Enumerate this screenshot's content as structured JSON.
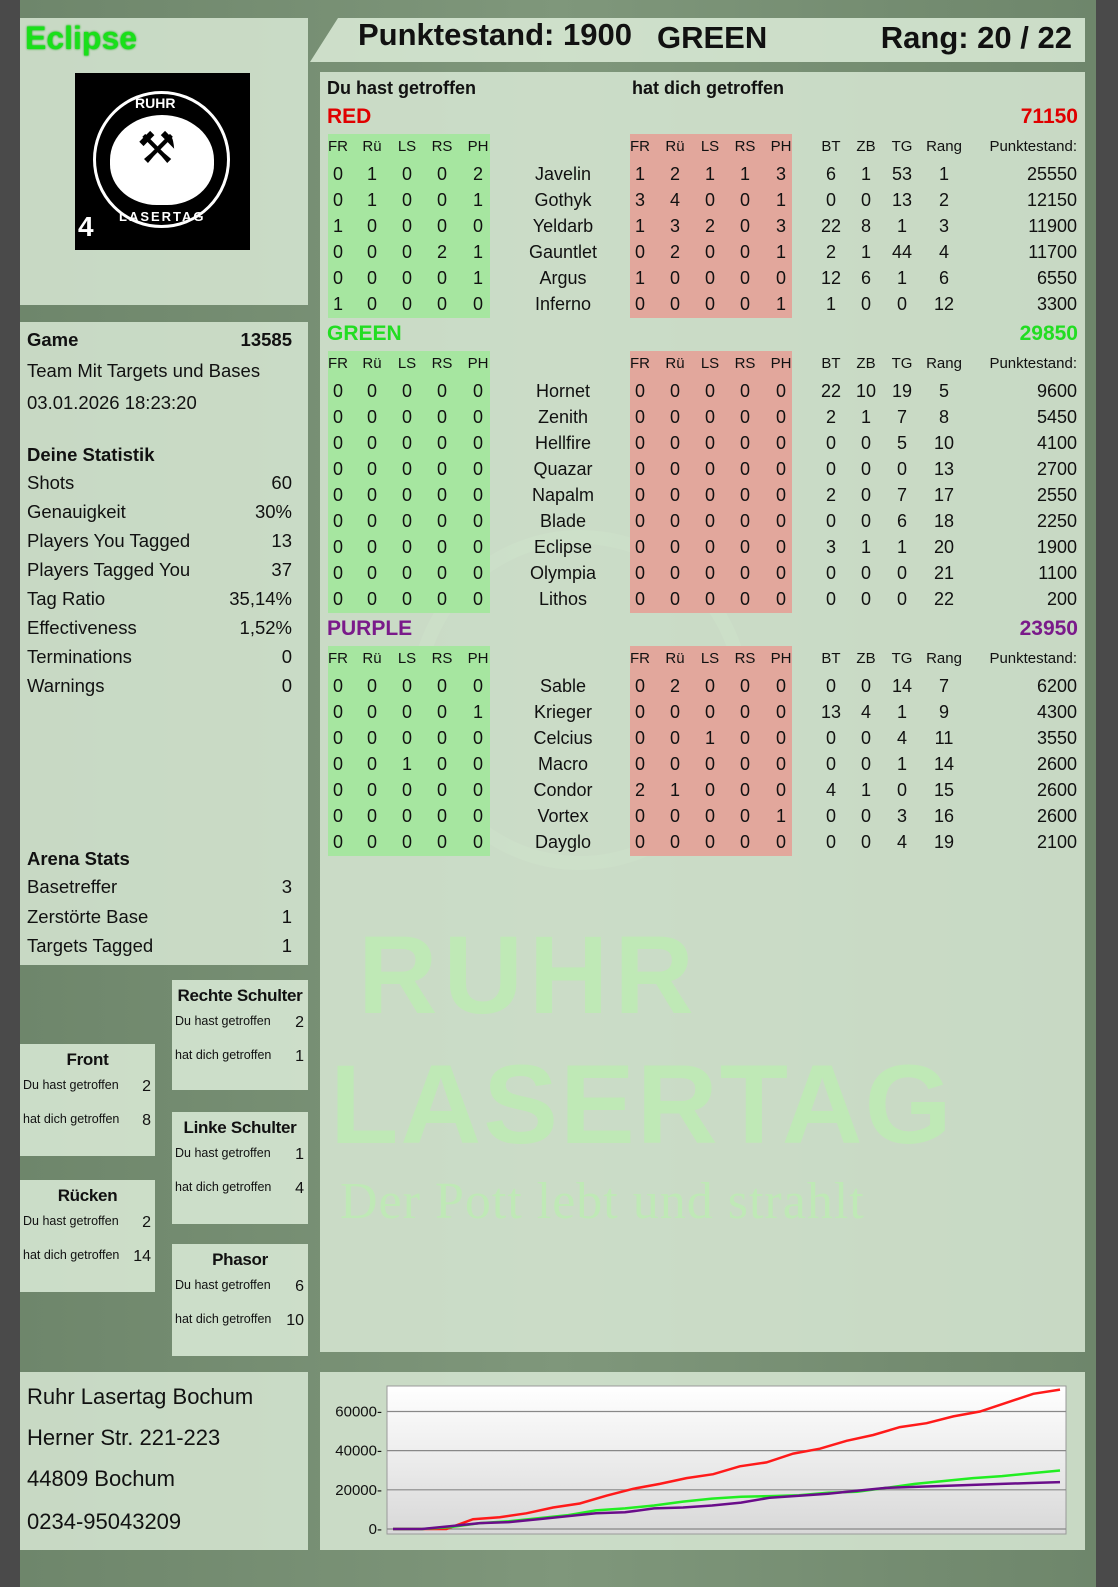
{
  "player": {
    "name": "Eclipse",
    "pack_number": "4"
  },
  "logo": {
    "text_top": "RUHR",
    "text_bottom": "LASERTAG"
  },
  "header": {
    "score": "Punktestand: 1900",
    "team": "GREEN",
    "rank": "Rang: 20 / 22"
  },
  "main": {
    "you_hit_label": "Du hast getroffen",
    "hit_you_label": "hat dich getroffen",
    "columns_you": [
      "FR",
      "Rü",
      "LS",
      "RS",
      "PH"
    ],
    "columns_them": [
      "FR",
      "Rü",
      "LS",
      "RS",
      "PH"
    ],
    "columns_stats": [
      "BT",
      "ZB",
      "TG",
      "Rang",
      "Punktestand:"
    ],
    "teams": [
      {
        "name": "RED",
        "score": "71150",
        "color": "#e00000",
        "players": [
          {
            "name": "Javelin",
            "you": [
              0,
              1,
              0,
              0,
              2
            ],
            "them": [
              1,
              2,
              1,
              1,
              3
            ],
            "bt": 6,
            "zb": 1,
            "tg": 53,
            "rang": 1,
            "score": 25550
          },
          {
            "name": "Gothyk",
            "you": [
              0,
              1,
              0,
              0,
              1
            ],
            "them": [
              3,
              4,
              0,
              0,
              1
            ],
            "bt": 0,
            "zb": 0,
            "tg": 13,
            "rang": 2,
            "score": 12150
          },
          {
            "name": "Yeldarb",
            "you": [
              1,
              0,
              0,
              0,
              0
            ],
            "them": [
              1,
              3,
              2,
              0,
              3
            ],
            "bt": 22,
            "zb": 8,
            "tg": 1,
            "rang": 3,
            "score": 11900
          },
          {
            "name": "Gauntlet",
            "you": [
              0,
              0,
              0,
              2,
              1
            ],
            "them": [
              0,
              2,
              0,
              0,
              1
            ],
            "bt": 2,
            "zb": 1,
            "tg": 44,
            "rang": 4,
            "score": 11700
          },
          {
            "name": "Argus",
            "you": [
              0,
              0,
              0,
              0,
              1
            ],
            "them": [
              1,
              0,
              0,
              0,
              0
            ],
            "bt": 12,
            "zb": 6,
            "tg": 1,
            "rang": 6,
            "score": 6550
          },
          {
            "name": "Inferno",
            "you": [
              1,
              0,
              0,
              0,
              0
            ],
            "them": [
              0,
              0,
              0,
              0,
              1
            ],
            "bt": 1,
            "zb": 0,
            "tg": 0,
            "rang": 12,
            "score": 3300
          }
        ]
      },
      {
        "name": "GREEN",
        "score": "29850",
        "color": "#22dd22",
        "players": [
          {
            "name": "Hornet",
            "you": [
              0,
              0,
              0,
              0,
              0
            ],
            "them": [
              0,
              0,
              0,
              0,
              0
            ],
            "bt": 22,
            "zb": 10,
            "tg": 19,
            "rang": 5,
            "score": 9600
          },
          {
            "name": "Zenith",
            "you": [
              0,
              0,
              0,
              0,
              0
            ],
            "them": [
              0,
              0,
              0,
              0,
              0
            ],
            "bt": 2,
            "zb": 1,
            "tg": 7,
            "rang": 8,
            "score": 5450
          },
          {
            "name": "Hellfire",
            "you": [
              0,
              0,
              0,
              0,
              0
            ],
            "them": [
              0,
              0,
              0,
              0,
              0
            ],
            "bt": 0,
            "zb": 0,
            "tg": 5,
            "rang": 10,
            "score": 4100
          },
          {
            "name": "Quazar",
            "you": [
              0,
              0,
              0,
              0,
              0
            ],
            "them": [
              0,
              0,
              0,
              0,
              0
            ],
            "bt": 0,
            "zb": 0,
            "tg": 0,
            "rang": 13,
            "score": 2700
          },
          {
            "name": "Napalm",
            "you": [
              0,
              0,
              0,
              0,
              0
            ],
            "them": [
              0,
              0,
              0,
              0,
              0
            ],
            "bt": 2,
            "zb": 0,
            "tg": 7,
            "rang": 17,
            "score": 2550
          },
          {
            "name": "Blade",
            "you": [
              0,
              0,
              0,
              0,
              0
            ],
            "them": [
              0,
              0,
              0,
              0,
              0
            ],
            "bt": 0,
            "zb": 0,
            "tg": 6,
            "rang": 18,
            "score": 2250
          },
          {
            "name": "Eclipse",
            "you": [
              0,
              0,
              0,
              0,
              0
            ],
            "them": [
              0,
              0,
              0,
              0,
              0
            ],
            "bt": 3,
            "zb": 1,
            "tg": 1,
            "rang": 20,
            "score": 1900
          },
          {
            "name": "Olympia",
            "you": [
              0,
              0,
              0,
              0,
              0
            ],
            "them": [
              0,
              0,
              0,
              0,
              0
            ],
            "bt": 0,
            "zb": 0,
            "tg": 0,
            "rang": 21,
            "score": 1100
          },
          {
            "name": "Lithos",
            "you": [
              0,
              0,
              0,
              0,
              0
            ],
            "them": [
              0,
              0,
              0,
              0,
              0
            ],
            "bt": 0,
            "zb": 0,
            "tg": 0,
            "rang": 22,
            "score": 200
          }
        ]
      },
      {
        "name": "PURPLE",
        "score": "23950",
        "color": "#7a1a8a",
        "players": [
          {
            "name": "Sable",
            "you": [
              0,
              0,
              0,
              0,
              0
            ],
            "them": [
              0,
              2,
              0,
              0,
              0
            ],
            "bt": 0,
            "zb": 0,
            "tg": 14,
            "rang": 7,
            "score": 6200
          },
          {
            "name": "Krieger",
            "you": [
              0,
              0,
              0,
              0,
              1
            ],
            "them": [
              0,
              0,
              0,
              0,
              0
            ],
            "bt": 13,
            "zb": 4,
            "tg": 1,
            "rang": 9,
            "score": 4300
          },
          {
            "name": "Celcius",
            "you": [
              0,
              0,
              0,
              0,
              0
            ],
            "them": [
              0,
              0,
              1,
              0,
              0
            ],
            "bt": 0,
            "zb": 0,
            "tg": 4,
            "rang": 11,
            "score": 3550
          },
          {
            "name": "Macro",
            "you": [
              0,
              0,
              1,
              0,
              0
            ],
            "them": [
              0,
              0,
              0,
              0,
              0
            ],
            "bt": 0,
            "zb": 0,
            "tg": 1,
            "rang": 14,
            "score": 2600
          },
          {
            "name": "Condor",
            "you": [
              0,
              0,
              0,
              0,
              0
            ],
            "them": [
              2,
              1,
              0,
              0,
              0
            ],
            "bt": 4,
            "zb": 1,
            "tg": 0,
            "rang": 15,
            "score": 2600
          },
          {
            "name": "Vortex",
            "you": [
              0,
              0,
              0,
              0,
              0
            ],
            "them": [
              0,
              0,
              0,
              0,
              1
            ],
            "bt": 0,
            "zb": 0,
            "tg": 3,
            "rang": 16,
            "score": 2600
          },
          {
            "name": "Dayglo",
            "you": [
              0,
              0,
              0,
              0,
              0
            ],
            "them": [
              0,
              0,
              0,
              0,
              0
            ],
            "bt": 0,
            "zb": 0,
            "tg": 4,
            "rang": 19,
            "score": 2100
          }
        ]
      }
    ]
  },
  "game": {
    "label": "Game",
    "number": "13585",
    "mode": "Team Mit Targets und Bases",
    "datetime": "03.01.2026 18:23:20"
  },
  "stats": {
    "title": "Deine Statistik",
    "items": [
      {
        "label": "Shots",
        "value": "60"
      },
      {
        "label": "Genauigkeit",
        "value": "30%"
      },
      {
        "label": "Players You Tagged",
        "value": "13"
      },
      {
        "label": "Players Tagged You",
        "value": "37"
      },
      {
        "label": "Tag Ratio",
        "value": "35,14%"
      },
      {
        "label": "Effectiveness",
        "value": "1,52%"
      },
      {
        "label": "Terminations",
        "value": "0"
      },
      {
        "label": "Warnings",
        "value": "0"
      }
    ]
  },
  "arena": {
    "title": "Arena Stats",
    "items": [
      {
        "label": "Basetreffer",
        "value": "3"
      },
      {
        "label": "Zerstörte Base",
        "value": "1"
      },
      {
        "label": "Targets Tagged",
        "value": "1"
      }
    ]
  },
  "zones": [
    {
      "name": "Rechte Schulter",
      "you_label": "Du hast getroffen",
      "you": "2",
      "them_label": "hat dich getroffen",
      "them": "1"
    },
    {
      "name": "Front",
      "you_label": "Du hast getroffen",
      "you": "2",
      "them_label": "hat dich getroffen",
      "them": "8"
    },
    {
      "name": "Linke Schulter",
      "you_label": "Du hast getroffen",
      "you": "1",
      "them_label": "hat dich getroffen",
      "them": "4"
    },
    {
      "name": "Rücken",
      "you_label": "Du hast getroffen",
      "you": "2",
      "them_label": "hat dich getroffen",
      "them": "14"
    },
    {
      "name": "Phasor",
      "you_label": "Du hast getroffen",
      "you": "6",
      "them_label": "hat dich getroffen",
      "them": "10"
    }
  ],
  "address": {
    "line1": "Ruhr Lasertag Bochum",
    "line2": "Herner Str. 221-223",
    "line3": "44809 Bochum",
    "line4": "0234-95043209"
  },
  "watermark": {
    "line1": "RUHR",
    "line2": "LASERTAG",
    "slogan": "Der Pott lebt und strahlt"
  },
  "chart_data": {
    "type": "line",
    "ylim": [
      0,
      73000
    ],
    "yticks": [
      0,
      20000,
      40000,
      60000
    ],
    "grid": true,
    "series": [
      {
        "color": "#ff1a1a",
        "values": [
          0,
          0,
          0,
          5000,
          6000,
          8000,
          11000,
          13000,
          17000,
          20500,
          23000,
          26000,
          28000,
          32000,
          34000,
          38500,
          41000,
          45000,
          48000,
          52000,
          54000,
          57500,
          60000,
          64500,
          69000,
          71150
        ]
      },
      {
        "color": "#22ee22",
        "values": [
          0,
          0,
          1000,
          3000,
          4000,
          5500,
          7000,
          9500,
          10500,
          12000,
          14000,
          15500,
          16500,
          16800,
          17200,
          18500,
          19000,
          21000,
          23000,
          24500,
          26000,
          27000,
          28500,
          29850
        ]
      },
      {
        "color": "#6a0d8a",
        "values": [
          0,
          0,
          1500,
          3000,
          3500,
          5000,
          6500,
          8000,
          8500,
          10500,
          11000,
          12000,
          13500,
          16000,
          17000,
          18000,
          19500,
          21000,
          21500,
          22000,
          22500,
          23000,
          23500,
          23950
        ]
      }
    ]
  }
}
